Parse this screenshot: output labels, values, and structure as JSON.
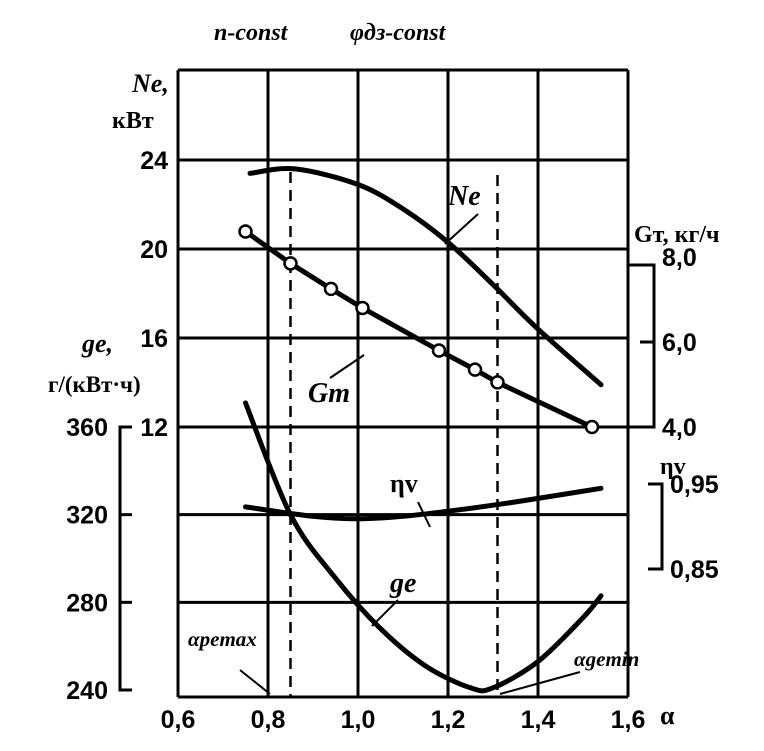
{
  "header": {
    "left": "n-const",
    "right": "φдз-const"
  },
  "chart_data": {
    "type": "line",
    "x": {
      "label": "α",
      "range": [
        0.6,
        1.6
      ],
      "ticks": [
        "0,6",
        "0,8",
        "1,0",
        "1,2",
        "1,4",
        "1,6"
      ]
    },
    "axes": {
      "Ne": {
        "label_top": "Ne,",
        "label_unit": "кВт",
        "range": [
          12,
          24
        ],
        "ticks": [
          "12",
          "16",
          "20",
          "24"
        ]
      },
      "ge": {
        "label_top": "ge,",
        "label_unit": "г/(кВт·ч)",
        "range": [
          240,
          360
        ],
        "ticks": [
          "240",
          "280",
          "320",
          "360"
        ]
      },
      "GT": {
        "label": "Gт, кг/ч",
        "range": [
          4.0,
          8.0
        ],
        "ticks": [
          "4,0",
          "6,0",
          "8,0"
        ]
      },
      "etaV": {
        "label": "ηv",
        "range": [
          0.85,
          0.95
        ],
        "ticks": [
          "0,85",
          "0,95"
        ]
      }
    },
    "series": [
      {
        "name": "Ne",
        "axis": "Ne",
        "points": [
          [
            0.76,
            23.4
          ],
          [
            0.86,
            23.6
          ],
          [
            1.0,
            22.9
          ],
          [
            1.1,
            21.8
          ],
          [
            1.2,
            20.3
          ],
          [
            1.3,
            18.4
          ],
          [
            1.4,
            16.4
          ],
          [
            1.54,
            13.9
          ]
        ]
      },
      {
        "name": "Gт",
        "axis": "GT",
        "markers": true,
        "points": [
          [
            0.75,
            8.6
          ],
          [
            0.85,
            7.85
          ],
          [
            0.94,
            7.25
          ],
          [
            1.01,
            6.8
          ],
          [
            1.18,
            5.8
          ],
          [
            1.26,
            5.35
          ],
          [
            1.31,
            5.05
          ],
          [
            1.52,
            4.0
          ]
        ]
      },
      {
        "name": "ηv",
        "axis": "etaV",
        "points": [
          [
            0.75,
            0.923
          ],
          [
            0.9,
            0.912
          ],
          [
            1.0,
            0.909
          ],
          [
            1.1,
            0.912
          ],
          [
            1.2,
            0.918
          ],
          [
            1.3,
            0.925
          ],
          [
            1.4,
            0.933
          ],
          [
            1.54,
            0.945
          ]
        ]
      },
      {
        "name": "ge",
        "axis": "ge",
        "points": [
          [
            0.75,
            371
          ],
          [
            0.85,
            320
          ],
          [
            0.95,
            291
          ],
          [
            1.05,
            268
          ],
          [
            1.15,
            251
          ],
          [
            1.25,
            241
          ],
          [
            1.3,
            241
          ],
          [
            1.4,
            253
          ],
          [
            1.5,
            273
          ],
          [
            1.54,
            283
          ]
        ]
      }
    ],
    "annotations": [
      {
        "text": "αpemax",
        "x": 0.85
      },
      {
        "text": "αgemin",
        "x": 1.31
      }
    ],
    "grid": true
  }
}
